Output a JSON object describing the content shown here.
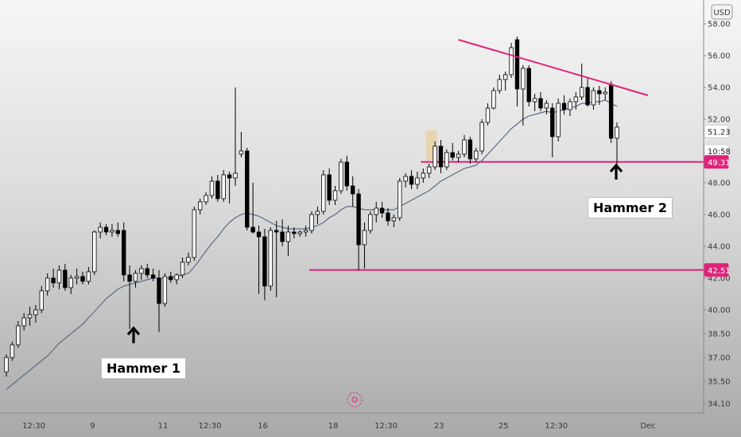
{
  "currency_badge": "USD",
  "callouts": [
    {
      "label": "Hammer 1"
    },
    {
      "label": "Hammer 2"
    }
  ],
  "colors": {
    "pink_line": "#e0237a",
    "ma_line": "#5b6b85",
    "candle_up_fill": "#ffffff",
    "candle_down_fill": "#000000",
    "highlight_box": "#e8d5b0"
  },
  "chart_data": {
    "type": "candlestick",
    "y_axis_ticks": [
      "58.00",
      "56.00",
      "54.00",
      "52.00",
      "51.23",
      "10:58",
      "49.31",
      "48.00",
      "46.00",
      "44.00",
      "42.51",
      "42.00",
      "40.00",
      "38.50",
      "37.00",
      "35.50",
      "34.10"
    ],
    "x_axis_ticks": [
      "12:30",
      "9",
      "11",
      "12:30",
      "16",
      "18",
      "12:30",
      "23",
      "25",
      "12:30",
      "Dec"
    ],
    "ylim": [
      33.5,
      59.5
    ],
    "price_tags": [
      {
        "label": "51.23",
        "value": 51.23,
        "style": "plain"
      },
      {
        "label": "10:58",
        "value": 50.0,
        "style": "plain"
      },
      {
        "label": "49.31",
        "value": 49.31,
        "style": "pink"
      },
      {
        "label": "42.51",
        "value": 42.51,
        "style": "pink"
      }
    ],
    "horizontal_levels": [
      {
        "value": 49.31,
        "from_index": 71,
        "to_index": 109
      },
      {
        "value": 42.51,
        "from_index": 52,
        "to_index": 109
      }
    ],
    "trendline": {
      "from": {
        "index": 77,
        "value": 57.0
      },
      "to": {
        "index": 99,
        "value": 53.5
      }
    },
    "annotations": [
      {
        "text": "Hammer 1",
        "index": 20
      },
      {
        "text": "Hammer 2",
        "index": 94
      }
    ],
    "candles": [
      [
        36.1,
        37.2,
        35.8,
        37.0
      ],
      [
        37.0,
        38.0,
        36.8,
        37.8
      ],
      [
        37.8,
        39.3,
        37.6,
        39.0
      ],
      [
        39.0,
        39.8,
        38.7,
        39.5
      ],
      [
        39.5,
        40.2,
        39.0,
        39.7
      ],
      [
        39.7,
        40.3,
        39.2,
        40.0
      ],
      [
        40.0,
        41.5,
        39.8,
        41.2
      ],
      [
        41.2,
        42.3,
        40.9,
        42.0
      ],
      [
        42.0,
        42.6,
        41.4,
        41.7
      ],
      [
        41.7,
        42.8,
        41.3,
        42.5
      ],
      [
        42.5,
        42.9,
        41.2,
        41.4
      ],
      [
        41.4,
        42.2,
        41.0,
        42.0
      ],
      [
        42.0,
        42.6,
        41.6,
        42.1
      ],
      [
        42.1,
        42.4,
        41.6,
        41.8
      ],
      [
        41.8,
        42.7,
        41.6,
        42.4
      ],
      [
        42.4,
        45.0,
        42.2,
        44.9
      ],
      [
        44.9,
        45.5,
        44.5,
        45.2
      ],
      [
        45.2,
        45.4,
        44.7,
        44.9
      ],
      [
        44.9,
        45.4,
        44.6,
        45.0
      ],
      [
        45.0,
        45.5,
        44.6,
        44.8
      ],
      [
        45.0,
        45.5,
        41.8,
        42.2
      ],
      [
        42.2,
        42.8,
        38.8,
        41.8
      ],
      [
        41.8,
        42.5,
        41.4,
        42.3
      ],
      [
        42.3,
        42.8,
        41.9,
        42.6
      ],
      [
        42.6,
        42.9,
        42.0,
        42.2
      ],
      [
        42.2,
        42.6,
        41.8,
        42.0
      ],
      [
        42.0,
        42.5,
        38.6,
        40.4
      ],
      [
        40.4,
        42.3,
        40.2,
        42.1
      ],
      [
        42.1,
        42.4,
        41.7,
        41.9
      ],
      [
        41.9,
        42.3,
        41.6,
        42.2
      ],
      [
        42.2,
        43.3,
        42.0,
        43.0
      ],
      [
        43.0,
        43.6,
        42.8,
        43.3
      ],
      [
        43.3,
        46.5,
        43.1,
        46.3
      ],
      [
        46.3,
        47.0,
        46.0,
        46.8
      ],
      [
        46.8,
        47.4,
        46.6,
        47.2
      ],
      [
        47.2,
        48.4,
        47.0,
        48.1
      ],
      [
        48.1,
        48.5,
        46.8,
        47.0
      ],
      [
        47.0,
        48.8,
        46.8,
        48.5
      ],
      [
        48.5,
        48.7,
        46.7,
        48.3
      ],
      [
        48.3,
        54.0,
        47.8,
        48.6
      ],
      [
        49.8,
        51.2,
        49.6,
        50.0
      ],
      [
        50.0,
        50.2,
        45.0,
        45.2
      ],
      [
        45.2,
        48.0,
        44.8,
        44.9
      ],
      [
        44.9,
        45.3,
        41.0,
        44.6
      ],
      [
        44.6,
        45.1,
        40.6,
        41.5
      ],
      [
        41.5,
        45.2,
        41.2,
        45.0
      ],
      [
        45.0,
        45.6,
        40.8,
        44.9
      ],
      [
        44.9,
        45.7,
        44.0,
        44.3
      ],
      [
        44.3,
        45.3,
        43.4,
        44.9
      ],
      [
        44.9,
        45.2,
        44.5,
        44.8
      ],
      [
        44.8,
        45.0,
        44.6,
        44.9
      ],
      [
        44.9,
        45.3,
        44.6,
        45.0
      ],
      [
        45.0,
        46.2,
        44.8,
        46.0
      ],
      [
        46.0,
        46.5,
        45.4,
        46.2
      ],
      [
        46.2,
        48.8,
        46.0,
        48.5
      ],
      [
        48.5,
        48.9,
        46.6,
        46.9
      ],
      [
        46.9,
        47.8,
        46.6,
        47.5
      ],
      [
        47.5,
        49.5,
        47.3,
        49.3
      ],
      [
        49.3,
        49.7,
        47.5,
        47.8
      ],
      [
        47.8,
        48.4,
        46.5,
        47.3
      ],
      [
        47.3,
        47.6,
        42.5,
        44.1
      ],
      [
        44.1,
        45.5,
        42.6,
        45.0
      ],
      [
        45.0,
        46.2,
        44.8,
        46.0
      ],
      [
        46.0,
        46.8,
        45.5,
        46.4
      ],
      [
        46.4,
        46.8,
        45.8,
        46.1
      ],
      [
        46.1,
        46.4,
        45.3,
        45.6
      ],
      [
        45.6,
        46.0,
        45.2,
        45.8
      ],
      [
        45.8,
        48.3,
        45.6,
        48.1
      ],
      [
        48.1,
        48.6,
        47.7,
        48.4
      ],
      [
        48.4,
        48.8,
        47.6,
        47.9
      ],
      [
        47.9,
        48.7,
        47.6,
        48.3
      ],
      [
        48.3,
        48.9,
        48.0,
        48.6
      ],
      [
        48.6,
        49.2,
        48.3,
        49.0
      ],
      [
        49.0,
        50.6,
        48.8,
        50.3
      ],
      [
        50.3,
        50.7,
        48.6,
        49.0
      ],
      [
        49.0,
        50.1,
        48.8,
        49.9
      ],
      [
        49.9,
        50.5,
        49.4,
        49.6
      ],
      [
        49.6,
        50.0,
        49.3,
        49.8
      ],
      [
        49.8,
        51.0,
        49.6,
        50.7
      ],
      [
        50.7,
        50.9,
        49.2,
        49.5
      ],
      [
        49.5,
        50.2,
        49.3,
        50.0
      ],
      [
        50.0,
        52.0,
        49.8,
        51.8
      ],
      [
        51.8,
        53.0,
        51.6,
        52.7
      ],
      [
        52.7,
        54.0,
        52.6,
        53.8
      ],
      [
        53.8,
        54.8,
        53.6,
        54.5
      ],
      [
        54.5,
        55.0,
        53.8,
        54.8
      ],
      [
        54.8,
        56.8,
        54.6,
        56.5
      ],
      [
        57.0,
        57.2,
        52.8,
        53.9
      ],
      [
        53.9,
        55.4,
        51.6,
        55.2
      ],
      [
        55.2,
        55.4,
        52.8,
        53.1
      ],
      [
        53.1,
        53.6,
        52.5,
        53.3
      ],
      [
        53.3,
        53.7,
        52.5,
        52.7
      ],
      [
        52.7,
        53.2,
        52.3,
        53.0
      ],
      [
        52.7,
        53.0,
        49.6,
        50.9
      ],
      [
        50.9,
        53.3,
        50.6,
        53.0
      ],
      [
        53.0,
        53.5,
        52.3,
        52.6
      ],
      [
        52.6,
        53.3,
        52.2,
        53.1
      ],
      [
        53.1,
        53.7,
        52.6,
        53.4
      ],
      [
        53.4,
        55.5,
        53.2,
        54.0
      ],
      [
        54.0,
        54.6,
        52.8,
        52.9
      ],
      [
        52.9,
        54.0,
        52.6,
        53.8
      ],
      [
        53.8,
        54.1,
        52.9,
        53.6
      ],
      [
        53.6,
        54.0,
        53.2,
        53.7
      ],
      [
        54.2,
        54.4,
        50.5,
        50.8
      ],
      [
        50.8,
        51.8,
        48.5,
        51.5
      ]
    ],
    "moving_average": [
      35.0,
      35.3,
      35.6,
      35.9,
      36.2,
      36.5,
      36.8,
      37.1,
      37.5,
      37.9,
      38.2,
      38.5,
      38.8,
      39.1,
      39.5,
      39.9,
      40.3,
      40.7,
      41.0,
      41.3,
      41.5,
      41.6,
      41.7,
      41.8,
      41.9,
      42.0,
      42.0,
      42.0,
      42.0,
      42.1,
      42.2,
      42.3,
      42.7,
      43.2,
      43.7,
      44.2,
      44.6,
      45.1,
      45.5,
      45.8,
      46.0,
      46.1,
      46.0,
      45.9,
      45.7,
      45.5,
      45.3,
      45.2,
      45.1,
      45.1,
      45.1,
      45.1,
      45.2,
      45.3,
      45.5,
      45.8,
      46.0,
      46.3,
      46.5,
      46.5,
      46.4,
      46.3,
      46.3,
      46.3,
      46.3,
      46.3,
      46.3,
      46.5,
      46.7,
      46.9,
      47.1,
      47.3,
      47.5,
      47.8,
      48.1,
      48.3,
      48.5,
      48.7,
      48.9,
      49.0,
      49.1,
      49.4,
      49.8,
      50.2,
      50.6,
      51.0,
      51.4,
      51.7,
      52.0,
      52.2,
      52.3,
      52.4,
      52.5,
      52.4,
      52.5,
      52.6,
      52.7,
      52.8,
      53.0,
      53.0,
      53.1,
      53.1,
      53.2,
      53.0,
      52.8
    ]
  }
}
